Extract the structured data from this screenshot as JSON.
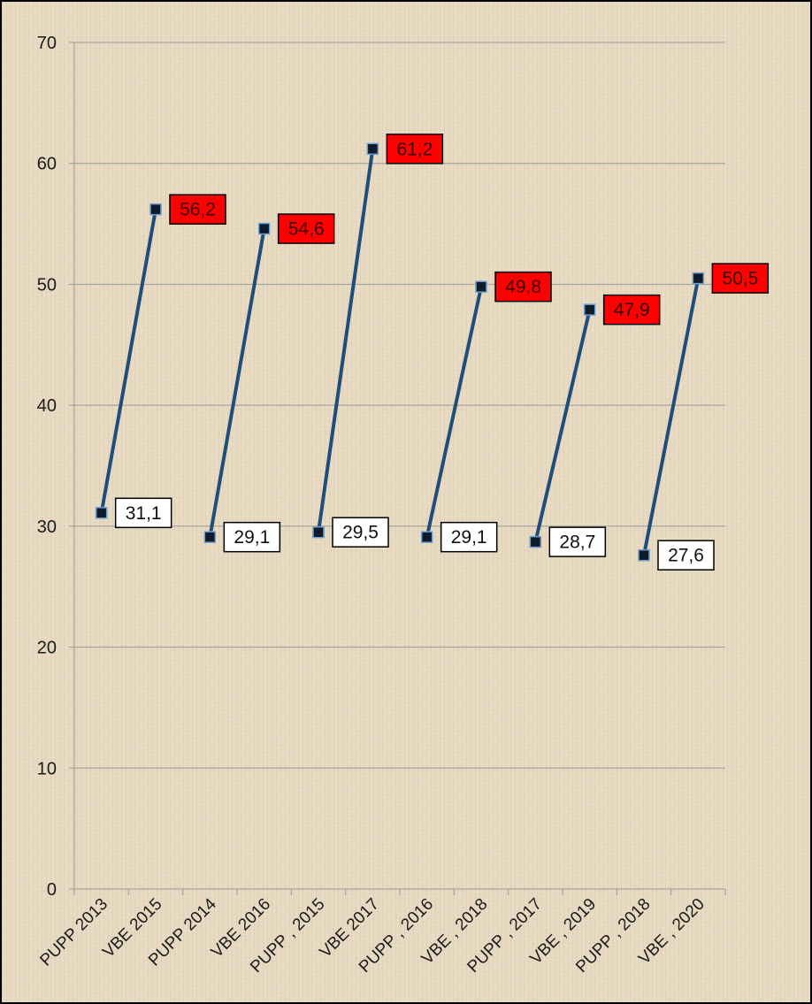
{
  "chart_data": {
    "type": "line",
    "title": "",
    "xlabel": "",
    "ylabel": "",
    "ylim": [
      0,
      70
    ],
    "yticks": [
      0,
      10,
      20,
      30,
      40,
      50,
      60,
      70
    ],
    "grid": true,
    "categories": [
      "PUPP 2013",
      "VBE 2015",
      "PUPP 2014",
      "VBE 2016",
      "PUPP , 2015",
      "VBE 2017",
      "PUPP , 2016",
      "VBE , 2018",
      "PUPP , 2017",
      "VBE , 2019",
      "PUPP , 2018",
      "VBE , 2020"
    ],
    "pairs": [
      {
        "from": {
          "category": "PUPP 2013",
          "value": 31.1,
          "label": "31,1"
        },
        "to": {
          "category": "VBE 2015",
          "value": 56.2,
          "label": "56,2"
        }
      },
      {
        "from": {
          "category": "PUPP 2014",
          "value": 29.1,
          "label": "29,1"
        },
        "to": {
          "category": "VBE 2016",
          "value": 54.6,
          "label": "54,6"
        }
      },
      {
        "from": {
          "category": "PUPP , 2015",
          "value": 29.5,
          "label": "29,5"
        },
        "to": {
          "category": "VBE 2017",
          "value": 61.2,
          "label": "61,2"
        }
      },
      {
        "from": {
          "category": "PUPP , 2016",
          "value": 29.1,
          "label": "29,1"
        },
        "to": {
          "category": "VBE , 2018",
          "value": 49.8,
          "label": "49,8"
        }
      },
      {
        "from": {
          "category": "PUPP , 2017",
          "value": 28.7,
          "label": "28,7"
        },
        "to": {
          "category": "VBE , 2019",
          "value": 47.9,
          "label": "47,9"
        }
      },
      {
        "from": {
          "category": "PUPP , 2018",
          "value": 27.6,
          "label": "27,6"
        },
        "to": {
          "category": "VBE , 2020",
          "value": 50.5,
          "label": "50,5"
        }
      }
    ],
    "colors": {
      "line": "#1f4e79",
      "marker_fill": "#0d1b2a",
      "marker_edge": "#6f9fd0",
      "from_label_bg": "#ffffff",
      "to_label_bg": "#ff0000",
      "to_label_text": "#3a0000",
      "label_border": "#000000",
      "gridline": "#9a9a9a"
    }
  }
}
